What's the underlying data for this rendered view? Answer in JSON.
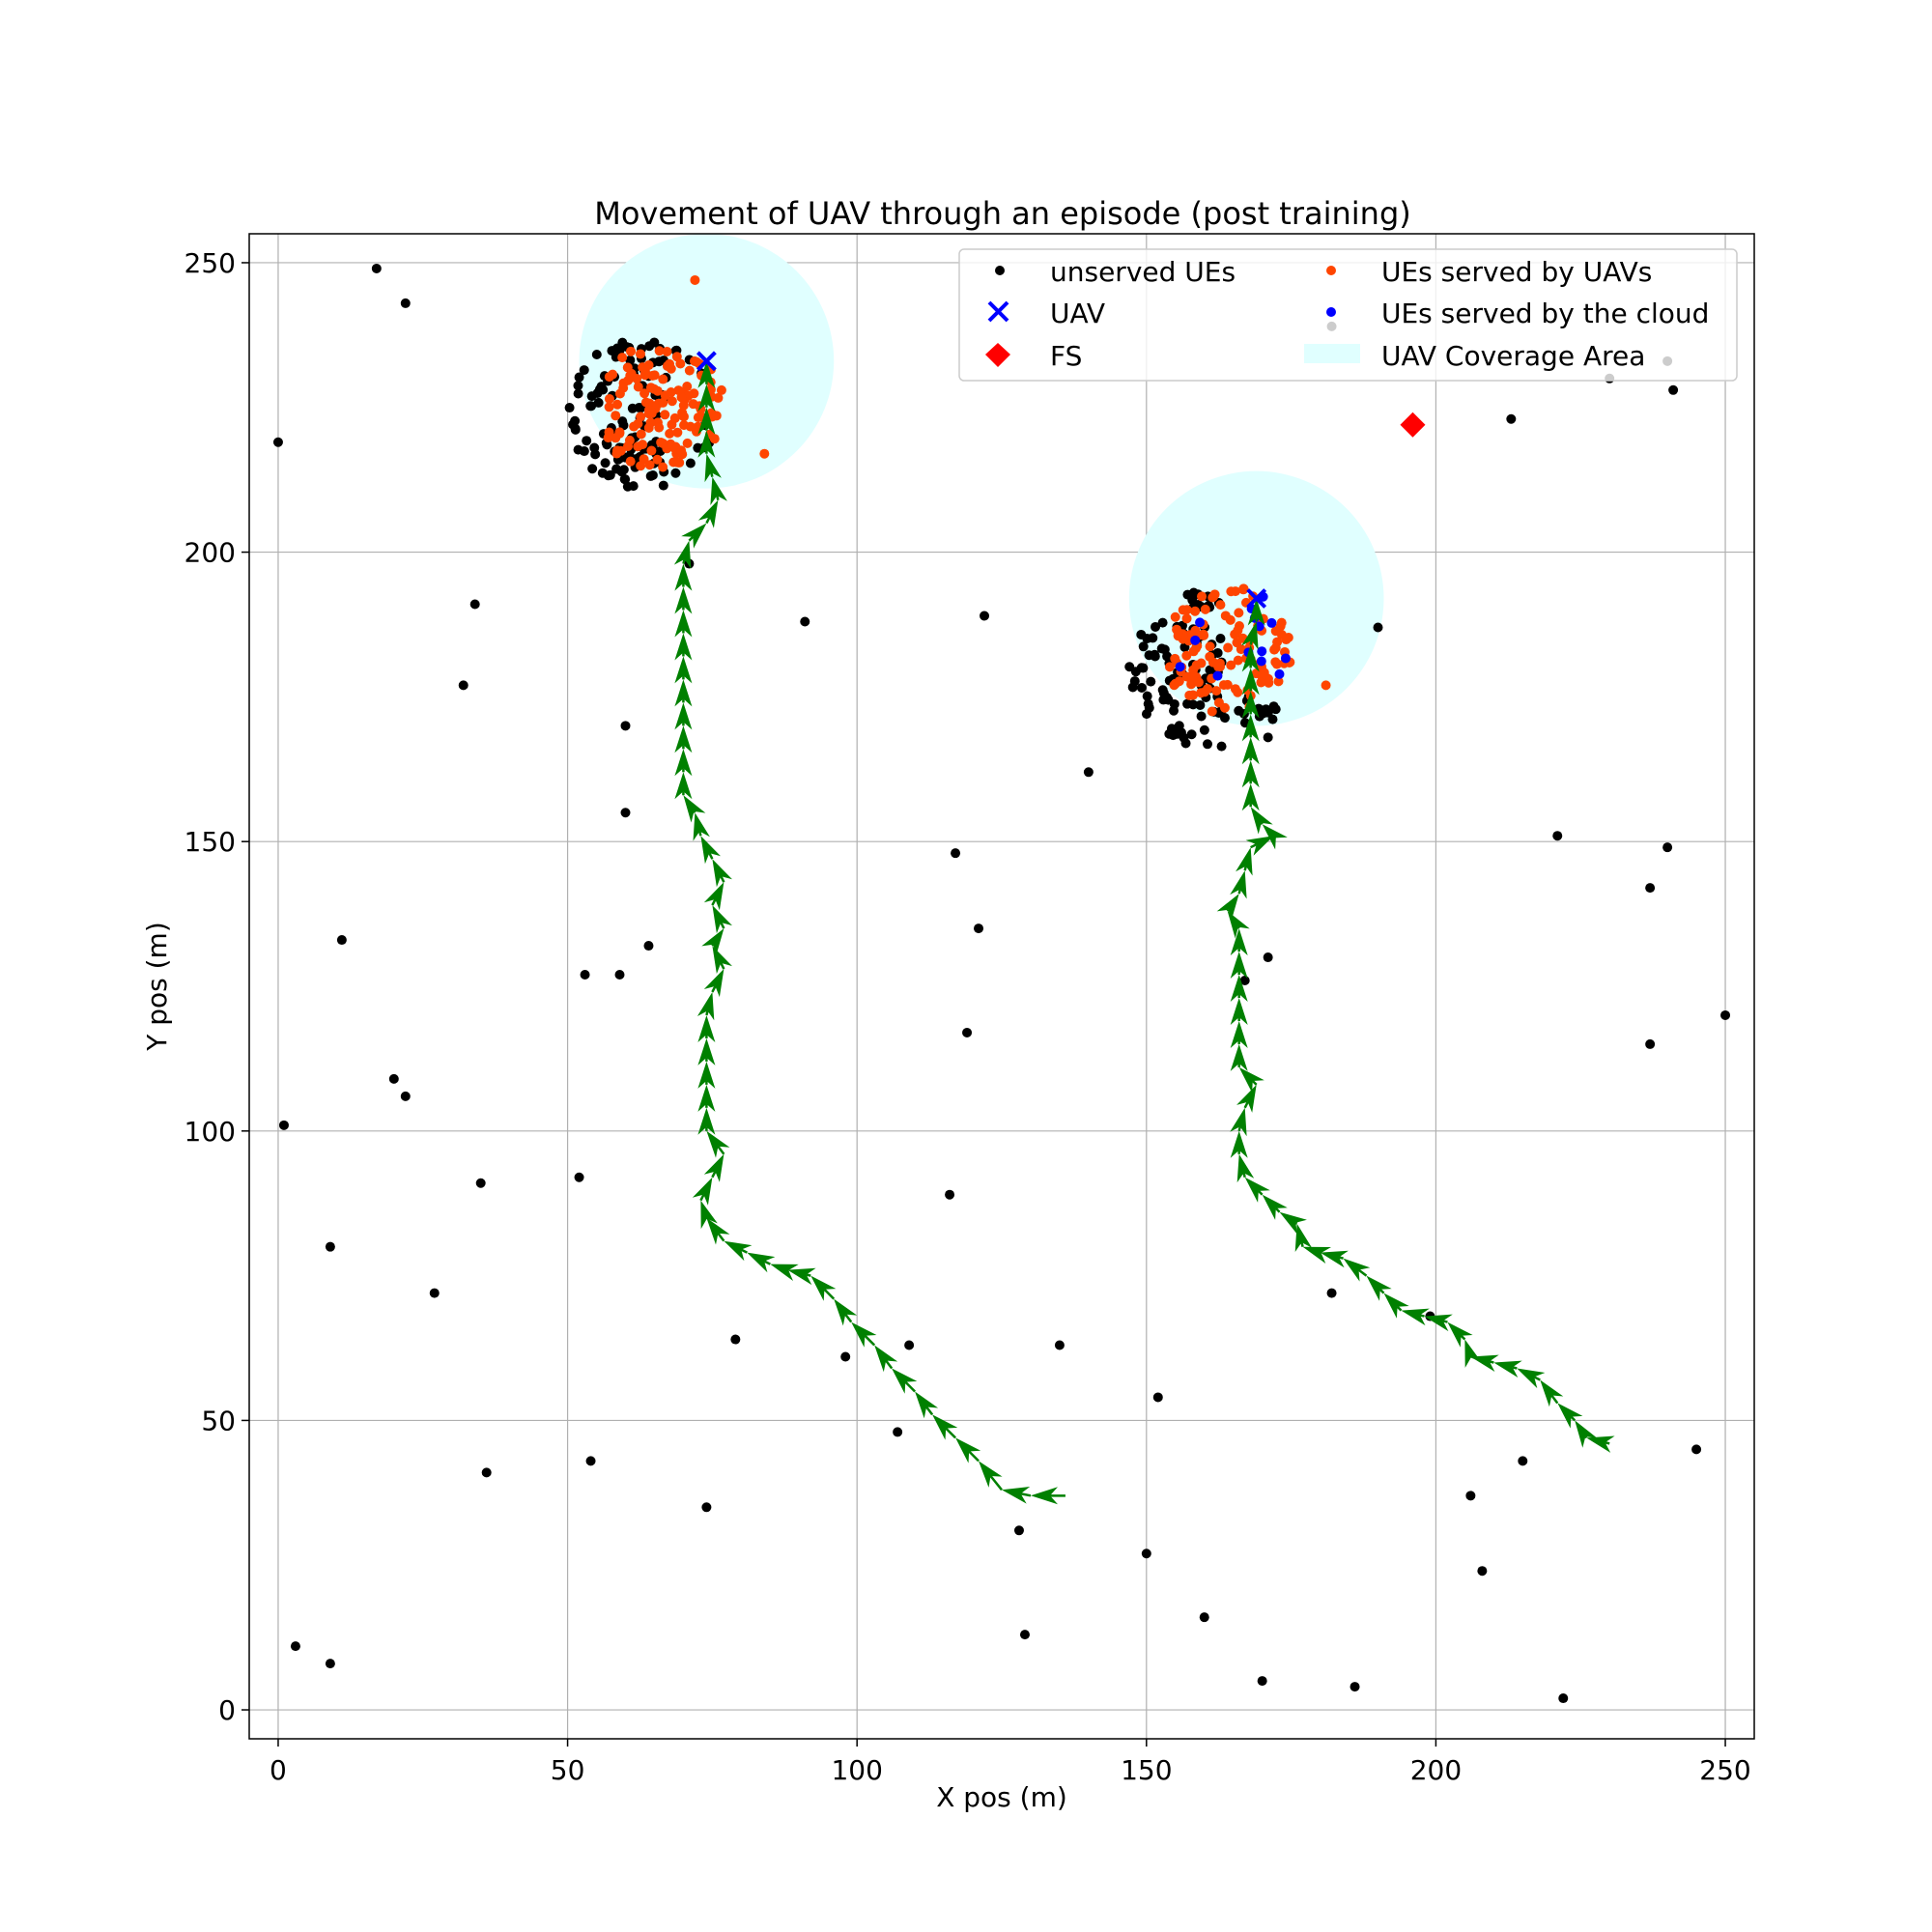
{
  "chart_data": {
    "type": "scatter",
    "title": "Movement of UAV through an episode (post training)",
    "xlabel": "X pos (m)",
    "ylabel": "Y pos (m)",
    "xlim": [
      -5,
      255
    ],
    "ylim": [
      -5,
      255
    ],
    "x_ticks": [
      0,
      50,
      100,
      150,
      200,
      250
    ],
    "y_ticks": [
      0,
      50,
      100,
      150,
      200,
      250
    ],
    "grid": true,
    "legend_position": "top-right",
    "legend": {
      "unserved": "unserved UEs",
      "uav": "UAV",
      "fs": "FS",
      "served_uav": "UEs served by UAVs",
      "served_cloud": "UEs served by the cloud",
      "coverage": "UAV Coverage Area"
    },
    "colors": {
      "unserved": "#000000",
      "uav": "#0000ff",
      "fs": "#ff0000",
      "served_uav": "#ff4500",
      "served_cloud": "#0000ff",
      "coverage": "#e0ffff",
      "trajectory": "#008000"
    },
    "coverage_areas": [
      {
        "center": [
          74,
          233
        ],
        "radius": 22
      },
      {
        "center": [
          169,
          192
        ],
        "radius": 22
      }
    ],
    "uav_positions": [
      [
        74,
        233
      ],
      [
        169,
        192
      ]
    ],
    "fs_position": [
      196,
      222
    ],
    "cluster_centers": [
      [
        63,
        224
      ],
      [
        161,
        180
      ]
    ],
    "cluster_radii": [
      13,
      14
    ],
    "unserved_ues_scattered": [
      [
        17,
        249
      ],
      [
        22,
        243
      ],
      [
        0,
        219
      ],
      [
        34,
        191
      ],
      [
        32,
        177
      ],
      [
        60,
        170
      ],
      [
        60,
        155
      ],
      [
        11,
        133
      ],
      [
        53,
        127
      ],
      [
        59,
        127
      ],
      [
        64,
        132
      ],
      [
        20,
        109
      ],
      [
        22,
        106
      ],
      [
        1,
        101
      ],
      [
        35,
        91
      ],
      [
        52,
        92
      ],
      [
        9,
        80
      ],
      [
        27,
        72
      ],
      [
        36,
        41
      ],
      [
        54,
        43
      ],
      [
        74,
        35
      ],
      [
        3,
        11
      ],
      [
        9,
        8
      ],
      [
        79,
        64
      ],
      [
        98,
        61
      ],
      [
        109,
        63
      ],
      [
        107,
        48
      ],
      [
        91,
        188
      ],
      [
        122,
        189
      ],
      [
        117,
        148
      ],
      [
        121,
        135
      ],
      [
        119,
        117
      ],
      [
        116,
        89
      ],
      [
        135,
        63
      ],
      [
        128,
        31
      ],
      [
        129,
        13
      ],
      [
        140,
        162
      ],
      [
        152,
        54
      ],
      [
        150,
        27
      ],
      [
        160,
        16
      ],
      [
        170,
        5
      ],
      [
        186,
        4
      ],
      [
        171,
        130
      ],
      [
        167,
        126
      ],
      [
        171,
        168
      ],
      [
        182,
        72
      ],
      [
        190,
        187
      ],
      [
        199,
        68
      ],
      [
        206,
        37
      ],
      [
        208,
        24
      ],
      [
        215,
        43
      ],
      [
        222,
        2
      ],
      [
        221,
        151
      ],
      [
        213,
        223
      ],
      [
        230,
        230
      ],
      [
        237,
        142
      ],
      [
        237,
        115
      ],
      [
        240,
        149
      ],
      [
        240,
        233
      ],
      [
        241,
        228
      ],
      [
        245,
        45
      ],
      [
        250,
        120
      ],
      [
        182,
        239
      ],
      [
        71,
        198
      ]
    ],
    "served_uav_extra": [
      [
        72,
        247
      ],
      [
        84,
        217
      ],
      [
        181,
        177
      ]
    ],
    "served_cloud_count_cluster2": 14,
    "served_uav_count_cluster1": 130,
    "served_uav_count_cluster2": 120,
    "unserved_count_cluster1": 120,
    "unserved_count_cluster2": 110,
    "trajectories": [
      {
        "path": [
          [
            136,
            37
          ],
          [
            130,
            37
          ],
          [
            125,
            38
          ],
          [
            121,
            43
          ],
          [
            117,
            47
          ],
          [
            113,
            51
          ],
          [
            110,
            55
          ],
          [
            106,
            59
          ],
          [
            103,
            63
          ],
          [
            99,
            67
          ],
          [
            96,
            71
          ],
          [
            92,
            75
          ],
          [
            88,
            76
          ],
          [
            85,
            77
          ],
          [
            81,
            79
          ],
          [
            77,
            81
          ],
          [
            74,
            85
          ],
          [
            73,
            88
          ],
          [
            75,
            92
          ],
          [
            77,
            96
          ],
          [
            74,
            100
          ],
          [
            74,
            104
          ],
          [
            74,
            108
          ],
          [
            74,
            112
          ],
          [
            74,
            116
          ],
          [
            74,
            120
          ],
          [
            75,
            124
          ],
          [
            77,
            128
          ],
          [
            75,
            132
          ],
          [
            77,
            135
          ],
          [
            75,
            139
          ],
          [
            77,
            143
          ],
          [
            75,
            147
          ],
          [
            73,
            151
          ],
          [
            72,
            155
          ],
          [
            70,
            158
          ],
          [
            70,
            162
          ],
          [
            70,
            166
          ],
          [
            70,
            170
          ],
          [
            70,
            174
          ],
          [
            70,
            178
          ],
          [
            70,
            182
          ],
          [
            70,
            186
          ],
          [
            70,
            190
          ],
          [
            70,
            194
          ],
          [
            70,
            198
          ],
          [
            71,
            202
          ],
          [
            74,
            205
          ],
          [
            76,
            209
          ],
          [
            75,
            213
          ],
          [
            74,
            217
          ],
          [
            74,
            221
          ],
          [
            74,
            225
          ],
          [
            74,
            229
          ],
          [
            74,
            233
          ]
        ]
      },
      {
        "path": [
          [
            230,
            46
          ],
          [
            226,
            47
          ],
          [
            224,
            50
          ],
          [
            221,
            53
          ],
          [
            218,
            57
          ],
          [
            214,
            59
          ],
          [
            210,
            60
          ],
          [
            206,
            61
          ],
          [
            205,
            64
          ],
          [
            202,
            67
          ],
          [
            198,
            68
          ],
          [
            194,
            69
          ],
          [
            191,
            72
          ],
          [
            188,
            75
          ],
          [
            184,
            78
          ],
          [
            180,
            79
          ],
          [
            177,
            80
          ],
          [
            176,
            84
          ],
          [
            173,
            86
          ],
          [
            170,
            89
          ],
          [
            167,
            92
          ],
          [
            166,
            96
          ],
          [
            166,
            100
          ],
          [
            167,
            104
          ],
          [
            169,
            108
          ],
          [
            166,
            111
          ],
          [
            166,
            115
          ],
          [
            166,
            119
          ],
          [
            166,
            123
          ],
          [
            166,
            127
          ],
          [
            166,
            131
          ],
          [
            166,
            135
          ],
          [
            164,
            138
          ],
          [
            166,
            141
          ],
          [
            167,
            145
          ],
          [
            168,
            149
          ],
          [
            172,
            151
          ],
          [
            170,
            153
          ],
          [
            168,
            156
          ],
          [
            168,
            160
          ],
          [
            168,
            164
          ],
          [
            168,
            168
          ],
          [
            168,
            172
          ],
          [
            168,
            176
          ],
          [
            168,
            180
          ],
          [
            168,
            184
          ],
          [
            169,
            188
          ],
          [
            169,
            192
          ]
        ]
      }
    ]
  }
}
